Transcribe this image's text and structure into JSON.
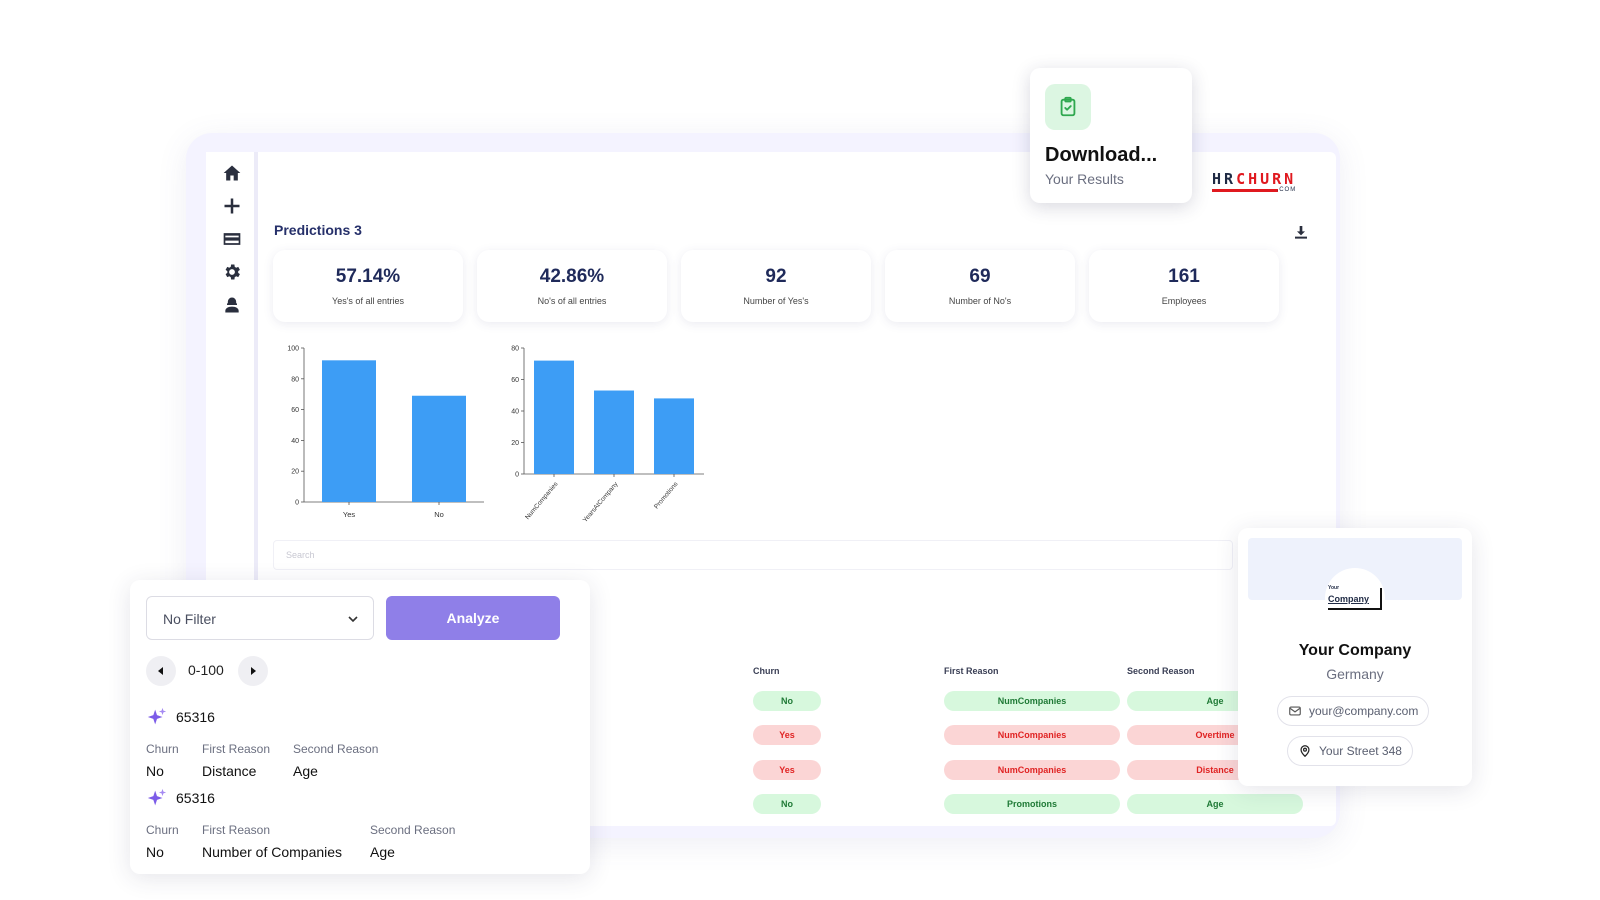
{
  "sidebar": {
    "icons": [
      "home-icon",
      "plus-icon",
      "credit-card-icon",
      "gear-icon",
      "user-icon"
    ]
  },
  "header": {
    "title": "Predictions 3",
    "logo": {
      "hr": "HR",
      "churn": "CHURN",
      "com": ".COM"
    }
  },
  "stats": [
    {
      "value": "57.14%",
      "label": "Yes's of all entries"
    },
    {
      "value": "42.86%",
      "label": "No's of all entries"
    },
    {
      "value": "92",
      "label": "Number of Yes's"
    },
    {
      "value": "69",
      "label": "Number of No's"
    },
    {
      "value": "161",
      "label": "Employees"
    }
  ],
  "chart_data": [
    {
      "type": "bar",
      "title": "",
      "categories": [
        "Yes",
        "No"
      ],
      "values": [
        92,
        69
      ],
      "ylim": [
        0,
        100
      ],
      "yticks": [
        0,
        20,
        40,
        60,
        80,
        100
      ],
      "color": "#3d9df5"
    },
    {
      "type": "bar",
      "title": "",
      "categories": [
        "NumCompanies",
        "YearsAtCompany",
        "Promotions"
      ],
      "values": [
        72,
        53,
        48
      ],
      "ylim": [
        0,
        80
      ],
      "yticks": [
        0,
        20,
        40,
        60,
        80
      ],
      "color": "#3d9df5"
    }
  ],
  "search": {
    "placeholder": "Search"
  },
  "table": {
    "headers": {
      "churn": "Churn",
      "first": "First Reason",
      "second": "Second Reason"
    },
    "rows": [
      {
        "churn": "No",
        "first": "NumCompanies",
        "second": "Age",
        "status": "g"
      },
      {
        "churn": "Yes",
        "first": "NumCompanies",
        "second": "Overtime",
        "status": "r"
      },
      {
        "churn": "Yes",
        "first": "NumCompanies",
        "second": "Distance",
        "status": "r"
      },
      {
        "churn": "No",
        "first": "Promotions",
        "second": "Age",
        "status": "g"
      }
    ]
  },
  "download_card": {
    "title": "Download...",
    "subtitle": "Your Results"
  },
  "filter": {
    "select_value": "No Filter",
    "analyze_label": "Analyze",
    "range": "0-100",
    "results": [
      {
        "id": "65316",
        "labels": [
          "Churn",
          "First Reason",
          "Second Reason"
        ],
        "values": [
          "No",
          "Distance",
          "Age"
        ]
      },
      {
        "id": "65316",
        "labels": [
          "Churn",
          "First Reason",
          "Second Reason"
        ],
        "values": [
          "No",
          "Number of Companies",
          "Age"
        ]
      }
    ]
  },
  "company": {
    "logo_small": "Your",
    "logo_main": "Company",
    "name": "Your Company",
    "country": "Germany",
    "email": "your@company.com",
    "address": "Your Street 348"
  },
  "colors": {
    "accent": "#8f7fe8",
    "bar": "#3d9df5",
    "green_pill": "#d7f8dd",
    "red_pill": "#fbd5d5",
    "brand_red": "#e0191f"
  }
}
